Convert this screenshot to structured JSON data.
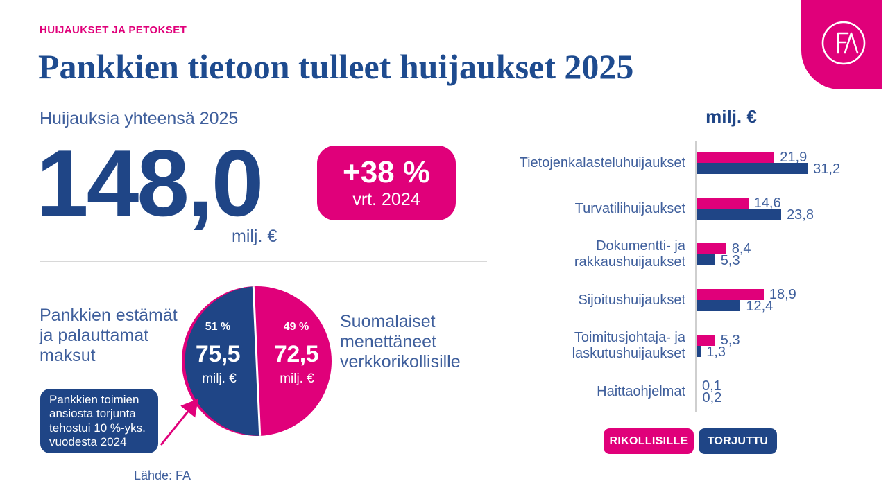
{
  "meta": {
    "eyebrow": "HUIJAUKSET JA PETOKSET",
    "title": "Pankkien tietoon tulleet huijaukset 2025",
    "source": "Lähde: FA",
    "logo_text": "FA"
  },
  "colors": {
    "pink": "#E0007A",
    "navy": "#1F4586",
    "title_blue": "#1E4B8F",
    "text_blue": "#3F5F9C",
    "divider": "#D8D8D8"
  },
  "summary": {
    "label": "Huijauksia yhteensä 2025",
    "value": "148,0",
    "unit": "milj. €",
    "badge_change": "+38 %",
    "badge_compare": "vrt. 2024"
  },
  "pie": {
    "left_label": "Pankkien estämät\nja palauttamat\nmaksut",
    "right_label": "Suomalaiset\nmenettäneet\nverkkorikollisille",
    "callout": "Pankkien toimien\nansiosta torjunta\ntehostui 10 %-yks.\nvuodesta 2024",
    "blue_slice": {
      "percent": "51 %",
      "value": "75,5",
      "unit": "milj. €",
      "share": 51
    },
    "pink_slice": {
      "percent": "49 %",
      "value": "72,5",
      "unit": "milj. €",
      "share": 49
    }
  },
  "chart_data": {
    "type": "bar",
    "orientation": "horizontal",
    "title": "milj. €",
    "xlim": [
      0,
      35
    ],
    "grid": false,
    "legend_position": "bottom",
    "categories": [
      "Tietojenkalasteluhuijaukset",
      "Turvatilihuijaukset",
      "Dokumentti- ja\nrakkaushuijaukset",
      "Sijoitushuijaukset",
      "Toimitusjohtaja- ja\nlaskutushuijaukset",
      "Haittaohjelmat"
    ],
    "series": [
      {
        "name": "RIKOLLISILLE",
        "color": "#E0007A",
        "values": [
          21.9,
          14.6,
          8.4,
          18.9,
          5.3,
          0.1
        ]
      },
      {
        "name": "TORJUTTU",
        "color": "#1F4586",
        "values": [
          31.2,
          23.8,
          5.3,
          12.4,
          1.3,
          0.2
        ]
      }
    ]
  }
}
